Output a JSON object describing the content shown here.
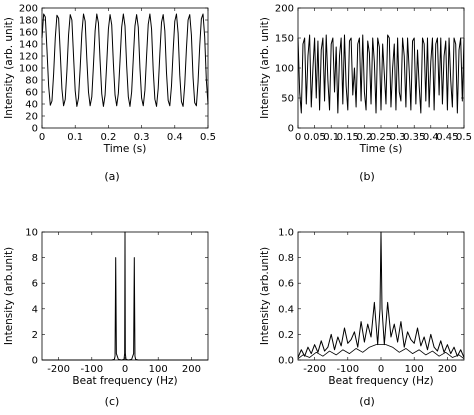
{
  "figure": {
    "panel_labels": [
      "(a)",
      "(b)",
      "(c)",
      "(d)"
    ],
    "line_color": "#000000",
    "background": "#ffffff"
  },
  "chart_data": [
    {
      "type": "line",
      "panel": "(a)",
      "title": "",
      "xlabel": "Time (s)",
      "ylabel": "Intensity (arb. unit)",
      "xlim": [
        0,
        0.5
      ],
      "ylim": [
        0,
        200
      ],
      "xticks": [
        "0",
        "0.1",
        "0.2",
        "0.3",
        "0.4",
        "0.5"
      ],
      "yticks": [
        "0",
        "20",
        "40",
        "60",
        "80",
        "100",
        "120",
        "140",
        "160",
        "180",
        "200"
      ],
      "grid": false,
      "legend": "none",
      "description_of_signal": "periodic oscillation",
      "series": [
        {
          "x": [
            0,
            0.005,
            0.01,
            0.015,
            0.02,
            0.025,
            0.03,
            0.035,
            0.04,
            0.045,
            0.05,
            0.055,
            0.06,
            0.065,
            0.07,
            0.075,
            0.08,
            0.085,
            0.09,
            0.095,
            0.1,
            0.105,
            0.11,
            0.115,
            0.12,
            0.125,
            0.13,
            0.135,
            0.14,
            0.145,
            0.15,
            0.155,
            0.16,
            0.165,
            0.17,
            0.175,
            0.18,
            0.185,
            0.19,
            0.195,
            0.2,
            0.205,
            0.21,
            0.215,
            0.22,
            0.225,
            0.23,
            0.235,
            0.24,
            0.245,
            0.25,
            0.255,
            0.26,
            0.265,
            0.27,
            0.275,
            0.28,
            0.285,
            0.29,
            0.295,
            0.3,
            0.305,
            0.31,
            0.315,
            0.32,
            0.325,
            0.33,
            0.335,
            0.34,
            0.345,
            0.35,
            0.355,
            0.36,
            0.365,
            0.37,
            0.375,
            0.38,
            0.385,
            0.39,
            0.395,
            0.4,
            0.405,
            0.41,
            0.415,
            0.42,
            0.425,
            0.43,
            0.435,
            0.44,
            0.445,
            0.45,
            0.455,
            0.46,
            0.465,
            0.47,
            0.475,
            0.48,
            0.485,
            0.49,
            0.495,
            0.5
          ],
          "y": [
            150,
            190,
            185,
            130,
            70,
            38,
            45,
            90,
            150,
            188,
            183,
            125,
            65,
            37,
            48,
            95,
            155,
            189,
            180,
            120,
            62,
            36,
            50,
            100,
            158,
            190,
            178,
            115,
            60,
            37,
            52,
            105,
            162,
            190,
            175,
            112,
            57,
            36,
            55,
            108,
            165,
            189,
            172,
            108,
            55,
            37,
            58,
            112,
            168,
            190,
            170,
            104,
            52,
            36,
            60,
            116,
            170,
            189,
            168,
            100,
            50,
            37,
            63,
            120,
            173,
            190,
            165,
            96,
            48,
            36,
            66,
            124,
            176,
            189,
            162,
            92,
            46,
            37,
            70,
            128,
            178,
            190,
            158,
            88,
            44,
            36,
            73,
            132,
            180,
            189,
            155,
            84,
            42,
            37,
            76,
            136,
            182,
            190,
            152,
            80,
            40
          ]
        }
      ]
    },
    {
      "type": "line",
      "panel": "(b)",
      "title": "",
      "xlabel": "Time (s)",
      "ylabel": "Intensity (arb. unit)",
      "xlim": [
        0,
        0.5
      ],
      "ylim": [
        0,
        200
      ],
      "xticks": [
        "0",
        "0.05",
        "0.1",
        "0.15",
        "0.2",
        "0.25",
        "0.3",
        "0.35",
        "0.4",
        "0.45",
        "0.5"
      ],
      "yticks": [
        "0",
        "50",
        "100",
        "150",
        "200"
      ],
      "grid": false,
      "legend": "none",
      "series": [
        {
          "x": [
            0,
            0.005,
            0.01,
            0.015,
            0.02,
            0.025,
            0.03,
            0.035,
            0.04,
            0.045,
            0.05,
            0.055,
            0.06,
            0.065,
            0.07,
            0.075,
            0.08,
            0.085,
            0.09,
            0.095,
            0.1,
            0.105,
            0.11,
            0.115,
            0.12,
            0.125,
            0.13,
            0.135,
            0.14,
            0.145,
            0.15,
            0.155,
            0.16,
            0.165,
            0.17,
            0.175,
            0.18,
            0.185,
            0.19,
            0.195,
            0.2,
            0.205,
            0.21,
            0.215,
            0.22,
            0.225,
            0.23,
            0.235,
            0.24,
            0.245,
            0.25,
            0.255,
            0.26,
            0.265,
            0.27,
            0.275,
            0.28,
            0.285,
            0.29,
            0.295,
            0.3,
            0.305,
            0.31,
            0.315,
            0.32,
            0.325,
            0.33,
            0.335,
            0.34,
            0.345,
            0.35,
            0.355,
            0.36,
            0.365,
            0.37,
            0.375,
            0.38,
            0.385,
            0.39,
            0.395,
            0.4,
            0.405,
            0.41,
            0.415,
            0.42,
            0.425,
            0.43,
            0.435,
            0.44,
            0.445,
            0.45,
            0.455,
            0.46,
            0.465,
            0.47,
            0.475,
            0.48,
            0.485,
            0.49,
            0.495,
            0.5
          ],
          "y": [
            150,
            60,
            25,
            140,
            150,
            40,
            120,
            155,
            35,
            100,
            150,
            50,
            145,
            30,
            130,
            150,
            45,
            155,
            80,
            30,
            140,
            150,
            60,
            135,
            25,
            120,
            150,
            40,
            155,
            70,
            30,
            145,
            150,
            55,
            100,
            35,
            140,
            150,
            45,
            155,
            60,
            30,
            145,
            125,
            40,
            150,
            110,
            25,
            150,
            135,
            30,
            140,
            90,
            40,
            155,
            150,
            35,
            100,
            140,
            30,
            150,
            60,
            45,
            150,
            120,
            35,
            150,
            95,
            30,
            145,
            150,
            40,
            130,
            70,
            25,
            150,
            140,
            45,
            150,
            35,
            110,
            150,
            30,
            140,
            150,
            55,
            150,
            40,
            120,
            145,
            30,
            150,
            80,
            35,
            150,
            140,
            25,
            130,
            150,
            45,
            150
          ]
        }
      ]
    },
    {
      "type": "line",
      "panel": "(c)",
      "title": "",
      "xlabel": "Beat frequency (Hz)",
      "ylabel": "Intensity (arb.unit)",
      "xlim": [
        -250,
        250
      ],
      "ylim": [
        0,
        10
      ],
      "xticks": [
        "-200",
        "-100",
        "0",
        "100",
        "200"
      ],
      "yticks": [
        "0",
        "2",
        "4",
        "6",
        "8",
        "10"
      ],
      "grid": false,
      "legend": "none",
      "series": [
        {
          "x": [
            -250,
            -40,
            -32,
            -30,
            -28,
            -26,
            -20,
            -10,
            -3,
            -1,
            0,
            1,
            3,
            10,
            20,
            26,
            28,
            30,
            32,
            40,
            250
          ],
          "y": [
            0,
            0,
            0.05,
            0.3,
            8,
            0.5,
            0.05,
            0,
            0.05,
            0.5,
            10,
            0.5,
            0.05,
            0,
            0.05,
            0.5,
            8,
            0.3,
            0.05,
            0,
            0
          ]
        }
      ]
    },
    {
      "type": "line",
      "panel": "(d)",
      "title": "",
      "xlabel": "Beat frequency (Hz)",
      "ylabel": "Intensity (arb.unit)",
      "xlim": [
        -250,
        250
      ],
      "ylim": [
        0,
        1.0
      ],
      "xticks": [
        "-200",
        "-100",
        "0",
        "100",
        "200"
      ],
      "yticks": [
        "0.0",
        "0.2",
        "0.4",
        "0.6",
        "0.8",
        "1.0"
      ],
      "grid": false,
      "legend": "none",
      "series": [
        {
          "x": [
            -250,
            -240,
            -230,
            -220,
            -210,
            -200,
            -190,
            -180,
            -170,
            -160,
            -150,
            -140,
            -130,
            -120,
            -110,
            -100,
            -90,
            -80,
            -70,
            -60,
            -50,
            -40,
            -30,
            -20,
            -10,
            -3,
            0,
            3,
            10,
            20,
            30,
            40,
            50,
            60,
            70,
            80,
            90,
            100,
            110,
            120,
            130,
            140,
            150,
            160,
            170,
            180,
            190,
            200,
            210,
            220,
            230,
            240,
            250
          ],
          "y": [
            0.02,
            0.08,
            0.03,
            0.1,
            0.05,
            0.12,
            0.06,
            0.15,
            0.07,
            0.1,
            0.2,
            0.08,
            0.18,
            0.11,
            0.25,
            0.13,
            0.16,
            0.22,
            0.1,
            0.3,
            0.14,
            0.28,
            0.18,
            0.45,
            0.12,
            0.4,
            1.0,
            0.4,
            0.12,
            0.45,
            0.18,
            0.28,
            0.14,
            0.3,
            0.1,
            0.22,
            0.16,
            0.13,
            0.25,
            0.11,
            0.18,
            0.08,
            0.2,
            0.1,
            0.07,
            0.15,
            0.06,
            0.12,
            0.05,
            0.1,
            0.03,
            0.08,
            0.02
          ]
        },
        {
          "x": [
            -250,
            -235,
            -215,
            -195,
            -175,
            -155,
            -135,
            -115,
            -95,
            -75,
            -55,
            -35,
            -15,
            15,
            35,
            55,
            75,
            95,
            115,
            135,
            155,
            175,
            195,
            215,
            235,
            250
          ],
          "y": [
            0.01,
            0.04,
            0.02,
            0.06,
            0.03,
            0.07,
            0.04,
            0.08,
            0.05,
            0.09,
            0.06,
            0.1,
            0.12,
            0.12,
            0.1,
            0.06,
            0.09,
            0.05,
            0.08,
            0.04,
            0.07,
            0.03,
            0.06,
            0.02,
            0.04,
            0.01
          ]
        }
      ]
    }
  ]
}
